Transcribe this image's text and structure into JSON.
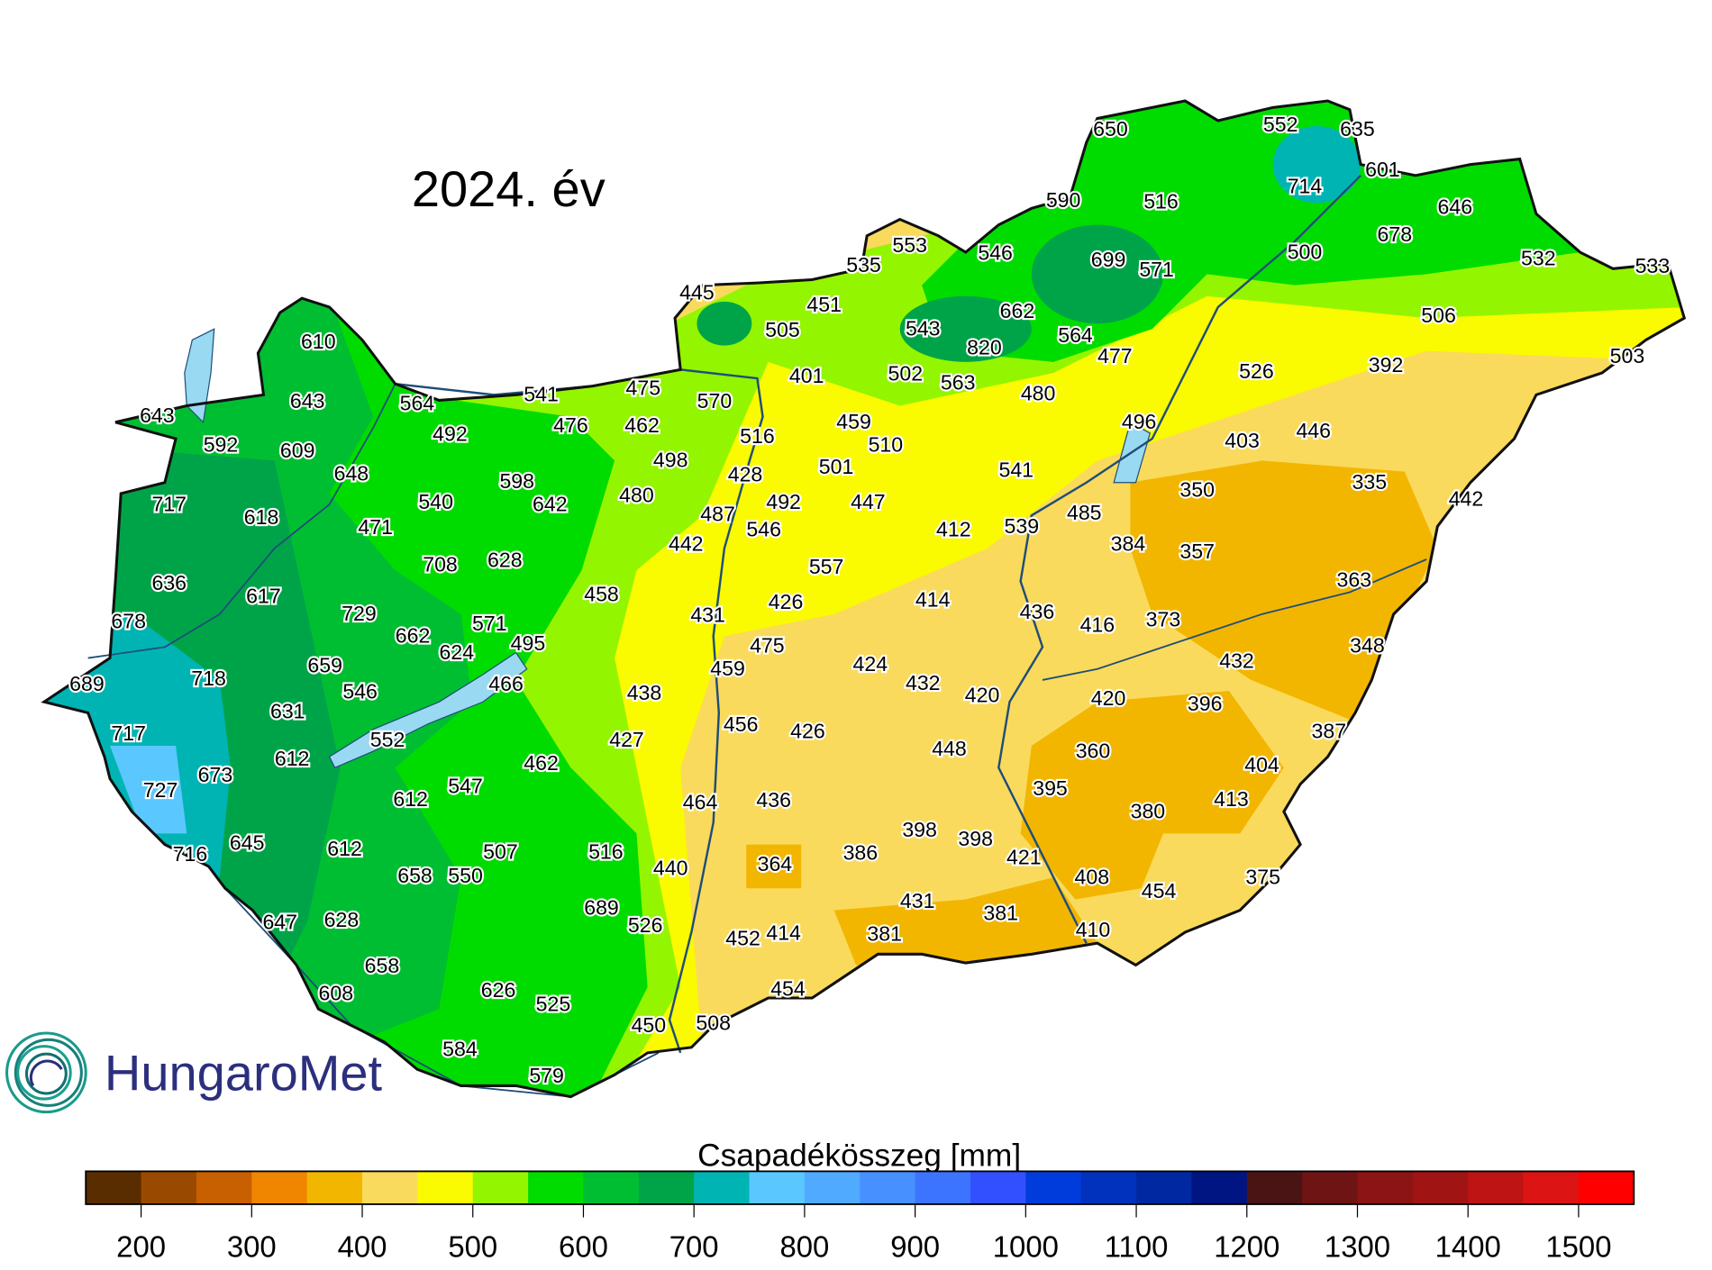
{
  "title": "2024. év",
  "logo_text": "HungaroMet",
  "colorbar": {
    "title": "Csapadékösszeg [mm]",
    "range": [
      150,
      1550
    ],
    "step": 50,
    "colors": [
      "#5a2d00",
      "#9a4a00",
      "#c85f00",
      "#f08500",
      "#f2b600",
      "#f9da5c",
      "#fafa00",
      "#94f500",
      "#00dc00",
      "#00be32",
      "#00a448",
      "#00b4b4",
      "#5ac8ff",
      "#50aaff",
      "#4690ff",
      "#3c74ff",
      "#3250ff",
      "#003cdc",
      "#0032be",
      "#0028a0",
      "#001482",
      "#4b1414",
      "#6e1414",
      "#8c1414",
      "#a01414",
      "#be1414",
      "#dc1414",
      "#ff0000"
    ],
    "ticks": [
      "200",
      "300",
      "400",
      "500",
      "600",
      "700",
      "800",
      "900",
      "1000",
      "1100",
      "1200",
      "1300",
      "1400",
      "1500"
    ]
  },
  "station_values": [
    "650",
    "552",
    "635",
    "714",
    "601",
    "590",
    "516",
    "646",
    "678",
    "500",
    "553",
    "546",
    "699",
    "571",
    "535",
    "532",
    "533",
    "445",
    "451",
    "662",
    "505",
    "543",
    "820",
    "564",
    "506",
    "477",
    "503",
    "392",
    "401",
    "502",
    "563",
    "526",
    "610",
    "475",
    "570",
    "541",
    "480",
    "643",
    "643",
    "564",
    "592",
    "609",
    "492",
    "476",
    "462",
    "459",
    "496",
    "446",
    "403",
    "516",
    "510",
    "498",
    "648",
    "428",
    "501",
    "541",
    "598",
    "335",
    "350",
    "442",
    "717",
    "540",
    "642",
    "480",
    "492",
    "447",
    "487",
    "485",
    "618",
    "471",
    "546",
    "412",
    "539",
    "384",
    "357",
    "442",
    "708",
    "628",
    "557",
    "363",
    "636",
    "458",
    "617",
    "426",
    "414",
    "436",
    "416",
    "373",
    "729",
    "431",
    "678",
    "571",
    "662",
    "624",
    "495",
    "475",
    "659",
    "424",
    "432",
    "348",
    "718",
    "689",
    "459",
    "466",
    "546",
    "438",
    "432",
    "420",
    "420",
    "396",
    "631",
    "717",
    "456",
    "426",
    "387",
    "552",
    "427",
    "448",
    "360",
    "612",
    "673",
    "462",
    "404",
    "727",
    "547",
    "395",
    "413",
    "612",
    "464",
    "436",
    "380",
    "398",
    "398",
    "645",
    "716",
    "612",
    "507",
    "516",
    "386",
    "364",
    "421",
    "440",
    "658",
    "550",
    "408",
    "375",
    "454",
    "431",
    "689",
    "647",
    "628",
    "381",
    "526",
    "452",
    "414",
    "381",
    "410",
    "658",
    "608",
    "626",
    "454",
    "525",
    "450",
    "508",
    "584",
    "579"
  ]
}
